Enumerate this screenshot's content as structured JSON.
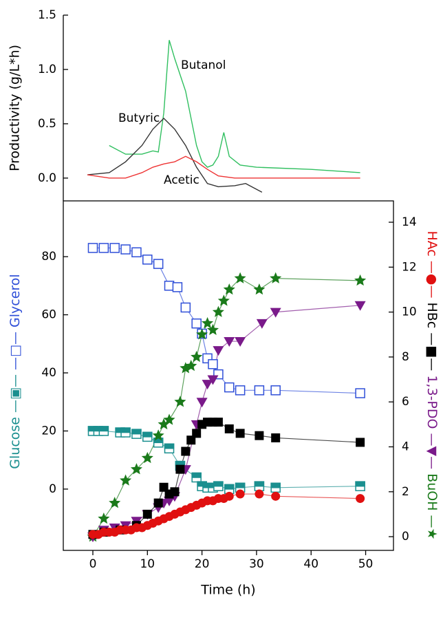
{
  "chart_data": [
    {
      "type": "line",
      "ylabel": "Productivity (g/L*h)",
      "xlim": [
        -5.42,
        55.1
      ],
      "ylim": [
        -0.21,
        1.5
      ],
      "yticks": [
        {
          "value": 0,
          "label": "0.0"
        },
        0.5,
        {
          "value": 1,
          "label": "1.0"
        },
        1.5
      ],
      "series": [
        {
          "name": "Butanol",
          "color": "#2fbf5f",
          "x": [
            3,
            6,
            9,
            11,
            12,
            13,
            14,
            15,
            16,
            17,
            18,
            19,
            20,
            21,
            22,
            23,
            24,
            25,
            27,
            30,
            40,
            49
          ],
          "values": [
            0.3,
            0.22,
            0.22,
            0.25,
            0.24,
            0.6,
            1.27,
            1.1,
            0.95,
            0.8,
            0.55,
            0.3,
            0.15,
            0.1,
            0.12,
            0.2,
            0.42,
            0.2,
            0.12,
            0.1,
            0.08,
            0.05
          ]
        },
        {
          "name": "Butyric",
          "color": "#333333",
          "x": [
            -1,
            3,
            6,
            9,
            11,
            13,
            15,
            17,
            19,
            21,
            23,
            26,
            28,
            31
          ],
          "values": [
            0.03,
            0.05,
            0.15,
            0.3,
            0.45,
            0.55,
            0.45,
            0.3,
            0.1,
            -0.05,
            -0.08,
            -0.07,
            -0.05,
            -0.13
          ]
        },
        {
          "name": "Acetic",
          "color": "#ee3333",
          "x": [
            -1,
            3,
            6,
            9,
            11,
            13,
            15,
            17,
            19,
            21,
            23,
            26,
            30,
            40,
            49
          ],
          "values": [
            0.03,
            0,
            0,
            0.05,
            0.1,
            0.13,
            0.15,
            0.2,
            0.15,
            0.08,
            0.02,
            0,
            0,
            0,
            0
          ]
        }
      ]
    },
    {
      "type": "line",
      "xlabel": "Time (h)",
      "xlim": [
        -5.42,
        55.1
      ],
      "xticks": [
        0,
        10,
        20,
        30,
        40,
        50
      ],
      "ylim": [
        -21.1,
        99.2
      ],
      "yticks": [
        0,
        20,
        40,
        60,
        80
      ],
      "y2lim": [
        -0.61,
        14.95
      ],
      "y2ticks": [
        0,
        2,
        4,
        6,
        8,
        10,
        12,
        14
      ],
      "series": [
        {
          "name": "Glucose",
          "color": "#1a8f8f",
          "marker": "half-square",
          "x": [
            0,
            1,
            2,
            5,
            6,
            8,
            10,
            12,
            14,
            16,
            19,
            20,
            21,
            22,
            23,
            25,
            27,
            30.5,
            33.5,
            49
          ],
          "values": [
            20,
            20,
            20,
            19.5,
            19.5,
            19,
            18,
            16,
            14,
            8,
            4,
            1,
            0.5,
            0.5,
            1,
            0,
            0.5,
            1,
            0.5,
            1
          ]
        },
        {
          "name": "Glycerol",
          "color": "#2f4fd8",
          "marker": "open-square",
          "x": [
            0,
            2,
            4,
            6,
            8,
            10,
            12,
            14,
            15.5,
            17,
            19,
            20,
            21,
            22,
            23,
            25,
            27,
            30.5,
            33.5,
            49
          ],
          "values": [
            83,
            83,
            83,
            82.5,
            81.5,
            79,
            77.5,
            70,
            69.5,
            62.5,
            57,
            53.5,
            45,
            43,
            39.5,
            35,
            34,
            34,
            34,
            33
          ]
        },
        {
          "name": "BuOH",
          "color": "#1a7a1a",
          "marker": "star",
          "axis": "y2",
          "x": [
            0,
            2,
            4,
            6,
            8,
            10,
            12,
            13,
            14,
            16,
            17,
            18,
            19,
            20,
            21,
            22,
            23,
            24,
            25,
            27,
            30.5,
            33.5,
            49
          ],
          "values": [
            0,
            0.8,
            1.5,
            2.5,
            3,
            3.5,
            4.5,
            5,
            5.2,
            6,
            7.5,
            7.6,
            8,
            9,
            9.5,
            9.2,
            10,
            10.5,
            11,
            11.5,
            11,
            11.5,
            11.4
          ]
        },
        {
          "name": "1,3-PDO",
          "color": "#7a1a8a",
          "marker": "triangle",
          "axis": "y2",
          "x": [
            0,
            2,
            4,
            6,
            8,
            10,
            12,
            13,
            14,
            15,
            17,
            19,
            20,
            21,
            22,
            23,
            25,
            27,
            31,
            33.5,
            49
          ],
          "values": [
            0,
            0.3,
            0.4,
            0.5,
            0.7,
            1,
            1.3,
            1.5,
            1.6,
            1.8,
            3,
            5,
            6,
            6.8,
            7,
            8.3,
            8.7,
            8.7,
            9.5,
            10,
            10.3
          ]
        },
        {
          "name": "HBc",
          "color": "#000000",
          "marker": "square",
          "axis": "y2",
          "x": [
            0,
            2,
            5,
            8,
            10,
            12,
            13,
            14,
            15,
            16,
            17,
            18,
            19,
            20,
            21,
            22,
            23,
            25,
            27,
            30.5,
            33.5,
            49
          ],
          "values": [
            0.1,
            0.2,
            0.3,
            0.5,
            1,
            1.5,
            2.2,
            1.9,
            2,
            3,
            3.8,
            4.3,
            4.6,
            5,
            5.1,
            5.1,
            5.1,
            4.8,
            4.6,
            4.5,
            4.4,
            4.2
          ]
        },
        {
          "name": "HAc",
          "color": "#e01010",
          "marker": "circle",
          "axis": "y2",
          "x": [
            0,
            1,
            2,
            3,
            4,
            5,
            6,
            7,
            8,
            9,
            10,
            11,
            12,
            13,
            14,
            15,
            16,
            17,
            18,
            19,
            20,
            21,
            22,
            23,
            24,
            25,
            27,
            30.5,
            33.5,
            49
          ],
          "values": [
            0.1,
            0.1,
            0.2,
            0.2,
            0.2,
            0.3,
            0.3,
            0.3,
            0.4,
            0.4,
            0.5,
            0.6,
            0.7,
            0.8,
            0.9,
            1,
            1.1,
            1.2,
            1.3,
            1.4,
            1.5,
            1.6,
            1.6,
            1.7,
            1.7,
            1.8,
            1.9,
            1.9,
            1.8,
            1.7
          ]
        }
      ]
    }
  ]
}
